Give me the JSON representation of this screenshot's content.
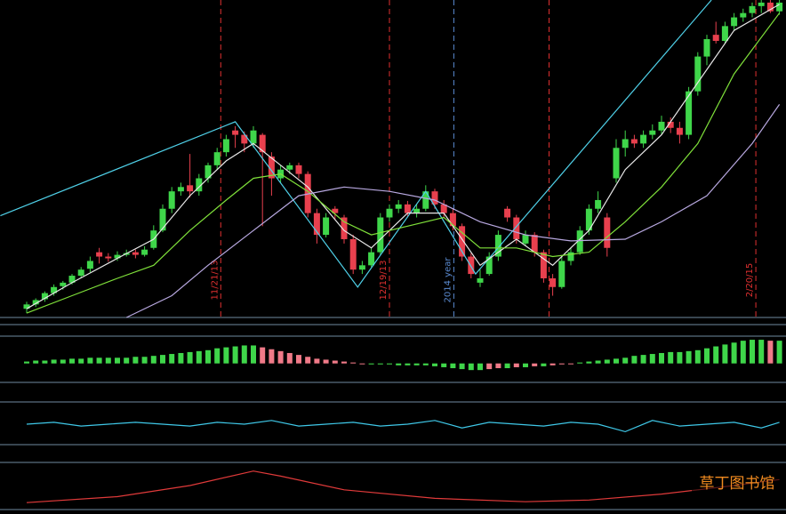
{
  "chart_data": [
    {
      "type": "candlestick",
      "ylim": [
        0,
        365
      ],
      "xlim": [
        -2.9,
        83.8
      ],
      "up_color": "#3fd64a",
      "down_color": "#e8404e",
      "ohlc": [
        [
          10,
          18,
          5,
          15
        ],
        [
          15,
          22,
          12,
          20
        ],
        [
          21,
          30,
          18,
          28
        ],
        [
          28,
          38,
          25,
          35
        ],
        [
          36,
          42,
          32,
          40
        ],
        [
          40,
          50,
          38,
          48
        ],
        [
          48,
          58,
          45,
          55
        ],
        [
          56,
          70,
          52,
          65
        ],
        [
          75,
          80,
          62,
          70
        ],
        [
          70,
          74,
          64,
          68
        ],
        [
          68,
          76,
          65,
          72
        ],
        [
          72,
          78,
          70,
          74
        ],
        [
          75,
          78,
          68,
          72
        ],
        [
          72,
          82,
          70,
          78
        ],
        [
          80,
          106,
          78,
          100
        ],
        [
          100,
          130,
          98,
          125
        ],
        [
          125,
          150,
          120,
          145
        ],
        [
          145,
          155,
          140,
          150
        ],
        [
          152,
          188,
          138,
          145
        ],
        [
          145,
          165,
          140,
          160
        ],
        [
          160,
          178,
          155,
          175
        ],
        [
          175,
          195,
          170,
          190
        ],
        [
          190,
          210,
          185,
          205
        ],
        [
          215,
          220,
          195,
          210
        ],
        [
          210,
          214,
          190,
          200
        ],
        [
          200,
          220,
          195,
          215
        ],
        [
          210,
          212,
          105,
          190
        ],
        [
          185,
          190,
          140,
          160
        ],
        [
          160,
          175,
          155,
          170
        ],
        [
          170,
          178,
          165,
          175
        ],
        [
          175,
          178,
          160,
          165
        ],
        [
          165,
          168,
          115,
          120
        ],
        [
          120,
          125,
          85,
          95
        ],
        [
          95,
          120,
          92,
          115
        ],
        [
          125,
          128,
          112,
          120
        ],
        [
          115,
          118,
          85,
          90
        ],
        [
          90,
          95,
          50,
          55
        ],
        [
          55,
          65,
          50,
          60
        ],
        [
          60,
          80,
          58,
          75
        ],
        [
          75,
          120,
          72,
          115
        ],
        [
          115,
          130,
          110,
          125
        ],
        [
          125,
          135,
          120,
          130
        ],
        [
          130,
          134,
          115,
          120
        ],
        [
          120,
          130,
          115,
          125
        ],
        [
          125,
          152,
          122,
          145
        ],
        [
          145,
          148,
          125,
          130
        ],
        [
          130,
          135,
          115,
          120
        ],
        [
          120,
          125,
          100,
          105
        ],
        [
          105,
          108,
          65,
          70
        ],
        [
          70,
          74,
          45,
          50
        ],
        [
          40,
          55,
          35,
          45
        ],
        [
          50,
          75,
          48,
          70
        ],
        [
          70,
          100,
          65,
          95
        ],
        [
          125,
          128,
          110,
          115
        ],
        [
          115,
          118,
          85,
          90
        ],
        [
          85,
          100,
          82,
          95
        ],
        [
          95,
          98,
          70,
          75
        ],
        [
          75,
          78,
          40,
          45
        ],
        [
          45,
          50,
          25,
          35
        ],
        [
          35,
          70,
          33,
          65
        ],
        [
          65,
          80,
          60,
          75
        ],
        [
          75,
          105,
          72,
          100
        ],
        [
          100,
          130,
          95,
          125
        ],
        [
          125,
          145,
          120,
          135
        ],
        [
          115,
          120,
          70,
          80
        ],
        [
          160,
          205,
          155,
          195
        ],
        [
          195,
          215,
          185,
          205
        ],
        [
          205,
          210,
          195,
          200
        ],
        [
          200,
          215,
          195,
          210
        ],
        [
          210,
          222,
          205,
          215
        ],
        [
          215,
          232,
          210,
          225
        ],
        [
          225,
          230,
          212,
          218
        ],
        [
          218,
          225,
          200,
          210
        ],
        [
          210,
          265,
          205,
          260
        ],
        [
          260,
          305,
          255,
          300
        ],
        [
          300,
          325,
          290,
          320
        ],
        [
          325,
          340,
          315,
          318
        ],
        [
          318,
          340,
          315,
          335
        ],
        [
          335,
          350,
          330,
          345
        ],
        [
          345,
          355,
          340,
          350
        ],
        [
          350,
          362,
          345,
          358
        ],
        [
          358,
          365,
          350,
          362
        ],
        [
          362,
          365,
          350,
          352
        ],
        [
          352,
          365,
          348,
          362
        ]
      ],
      "series": [
        {
          "color": "#4fd0e8",
          "x": [
            -2.9,
            23,
            36.5,
            44,
            49.5,
            75.5
          ],
          "values": [
            117,
            225,
            35,
            145,
            50,
            365
          ]
        },
        {
          "color": "#e8e8e8",
          "x": [
            0,
            5,
            10,
            14,
            18,
            22,
            25,
            28,
            31,
            35,
            38,
            42,
            46,
            50,
            54,
            58,
            62,
            66,
            70,
            74,
            78,
            83
          ],
          "values": [
            10,
            40,
            68,
            90,
            140,
            180,
            200,
            175,
            150,
            100,
            80,
            120,
            120,
            60,
            90,
            60,
            100,
            170,
            210,
            270,
            330,
            360
          ]
        },
        {
          "color": "#7fe03a",
          "x": [
            0,
            5,
            10,
            14,
            18,
            22,
            25,
            28,
            31,
            35,
            38,
            42,
            46,
            50,
            54,
            58,
            62,
            66,
            70,
            74,
            78,
            83
          ],
          "values": [
            5,
            25,
            45,
            60,
            100,
            135,
            160,
            165,
            145,
            110,
            95,
            105,
            115,
            80,
            80,
            70,
            75,
            110,
            150,
            200,
            280,
            350
          ]
        },
        {
          "color": "#b8a8e0",
          "x": [
            11,
            16,
            20,
            25,
            30,
            35,
            40,
            45,
            50,
            55,
            60,
            66,
            70,
            75,
            80,
            83
          ],
          "values": [
            0,
            25,
            60,
            100,
            140,
            150,
            145,
            135,
            110,
            95,
            88,
            90,
            110,
            140,
            200,
            245
          ]
        }
      ],
      "markers": [
        {
          "x": 21.4,
          "label": "11/21/13",
          "color": "#e03030"
        },
        {
          "x": 40,
          "label": "12/19/13",
          "color": "#e03030"
        },
        {
          "x": 47.1,
          "label": "2014 year",
          "color": "#5a8ad0"
        },
        {
          "x": 57.6,
          "color": "#e03030"
        },
        {
          "x": 80.4,
          "label": "2/20/15",
          "color": "#e03030"
        }
      ]
    },
    {
      "type": "histogram",
      "ylim": [
        -20,
        26
      ],
      "up_color": "#3fd64a",
      "down_color": "#f07a88",
      "values": [
        2,
        3,
        3,
        4,
        4,
        5,
        5,
        6,
        6,
        6,
        6,
        6,
        7,
        7,
        8,
        9,
        10,
        11,
        12,
        13,
        14,
        16,
        17,
        18,
        19,
        19,
        17,
        15,
        13,
        11,
        9,
        7,
        5,
        4,
        3,
        2,
        1,
        0,
        -1,
        -1,
        -1,
        -2,
        -2,
        -2,
        -2,
        -3,
        -4,
        -5,
        -6,
        -7,
        -7,
        -6,
        -5,
        -5,
        -4,
        -4,
        -3,
        -3,
        -2,
        -1,
        0,
        1,
        2,
        3,
        4,
        5,
        6,
        8,
        9,
        10,
        11,
        12,
        12,
        13,
        14,
        16,
        18,
        20,
        22,
        24,
        25,
        25,
        24,
        24
      ]
    },
    {
      "type": "line",
      "ylim": [
        -10,
        10
      ],
      "color": "#3fc8e8",
      "x": [
        0,
        3,
        6,
        9,
        12,
        15,
        18,
        21,
        24,
        27,
        30,
        33,
        36,
        39,
        42,
        45,
        48,
        51,
        54,
        57,
        60,
        63,
        66,
        69,
        72,
        75,
        78,
        81,
        83
      ],
      "values": [
        0,
        1,
        -1,
        0,
        1,
        0,
        -1,
        1,
        0,
        2,
        -1,
        0,
        1,
        -1,
        0,
        2,
        -2,
        1,
        0,
        -1,
        1,
        0,
        -4,
        2,
        -1,
        0,
        1,
        -2,
        1
      ]
    },
    {
      "type": "line",
      "ylim": [
        0,
        50
      ],
      "color": "#e03a3a",
      "x": [
        0,
        10,
        18,
        25,
        28,
        35,
        45,
        55,
        62,
        70,
        78,
        83
      ],
      "values": [
        5,
        12,
        25,
        42,
        36,
        20,
        10,
        6,
        8,
        15,
        25,
        32
      ]
    }
  ],
  "watermark": "草丁图书馆"
}
